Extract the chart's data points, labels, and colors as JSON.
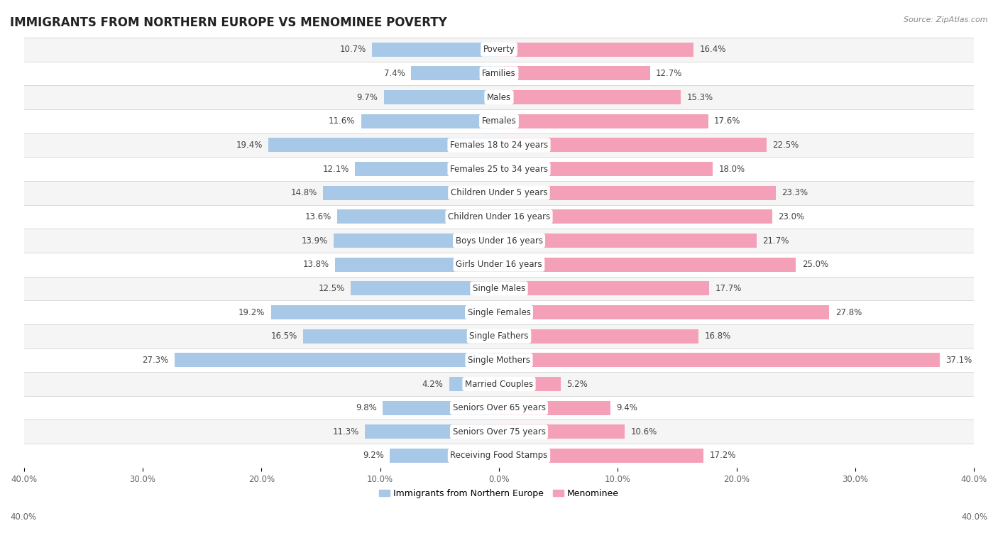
{
  "title": "IMMIGRANTS FROM NORTHERN EUROPE VS MENOMINEE POVERTY",
  "source": "Source: ZipAtlas.com",
  "categories": [
    "Poverty",
    "Families",
    "Males",
    "Females",
    "Females 18 to 24 years",
    "Females 25 to 34 years",
    "Children Under 5 years",
    "Children Under 16 years",
    "Boys Under 16 years",
    "Girls Under 16 years",
    "Single Males",
    "Single Females",
    "Single Fathers",
    "Single Mothers",
    "Married Couples",
    "Seniors Over 65 years",
    "Seniors Over 75 years",
    "Receiving Food Stamps"
  ],
  "left_values": [
    10.7,
    7.4,
    9.7,
    11.6,
    19.4,
    12.1,
    14.8,
    13.6,
    13.9,
    13.8,
    12.5,
    19.2,
    16.5,
    27.3,
    4.2,
    9.8,
    11.3,
    9.2
  ],
  "right_values": [
    16.4,
    12.7,
    15.3,
    17.6,
    22.5,
    18.0,
    23.3,
    23.0,
    21.7,
    25.0,
    17.7,
    27.8,
    16.8,
    37.1,
    5.2,
    9.4,
    10.6,
    17.2
  ],
  "left_color": "#a8c8e8",
  "right_color": "#f4a0b8",
  "left_label": "Immigrants from Northern Europe",
  "right_label": "Menominee",
  "axis_max": 40.0,
  "background_color": "#ffffff",
  "row_bg_odd": "#f5f5f5",
  "row_bg_even": "#ffffff",
  "title_fontsize": 12,
  "label_fontsize": 8.5,
  "value_fontsize": 8.5
}
